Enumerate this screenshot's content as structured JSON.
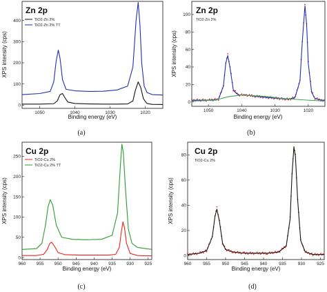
{
  "chart_data": [
    {
      "type": "line",
      "panel_label": "(a)",
      "title": "Zn 2p",
      "xlabel": "Binding energy (eV)",
      "ylabel": "XPS intensity (cps)",
      "xlim": [
        1055,
        1015
      ],
      "ylim": [
        -15,
        490
      ],
      "x_reversed": true,
      "x_ticks": [
        1050,
        1040,
        1030,
        1020
      ],
      "y_ticks": [
        0,
        100,
        200,
        300,
        400
      ],
      "legend": "top-left",
      "series": [
        {
          "name": "TiO2-Zn 2%",
          "color": "#111111",
          "x": [
            1055,
            1050,
            1046,
            1045,
            1044.2,
            1043.5,
            1043,
            1042,
            1040,
            1036,
            1032,
            1028,
            1025,
            1023.5,
            1022.8,
            1022,
            1021.3,
            1020.5,
            1019.5,
            1018,
            1015
          ],
          "y": [
            5,
            5,
            7,
            20,
            50,
            55,
            40,
            15,
            8,
            6,
            5,
            5,
            6,
            20,
            70,
            110,
            85,
            30,
            8,
            4,
            3
          ]
        },
        {
          "name": "TiO2-Zn 2% TT",
          "color": "#1f2fb0",
          "x": [
            1055,
            1050,
            1047,
            1046,
            1045.3,
            1044.7,
            1044.2,
            1043.5,
            1042.5,
            1040,
            1036,
            1032,
            1028,
            1025,
            1023.5,
            1022.6,
            1022,
            1021.5,
            1021,
            1020.3,
            1019.5,
            1018,
            1015
          ],
          "y": [
            50,
            55,
            65,
            110,
            210,
            260,
            220,
            120,
            75,
            68,
            65,
            66,
            72,
            90,
            180,
            400,
            485,
            380,
            200,
            90,
            60,
            50,
            48
          ]
        }
      ]
    },
    {
      "type": "line",
      "panel_label": "(b)",
      "title": "Zn 2p",
      "subtitle": "TiO2-Zn 2%",
      "xlabel": "Binding energy (eV)",
      "ylabel": "XPS intensity (cps)",
      "xlim": [
        1055,
        1015
      ],
      "ylim": [
        -5,
        115
      ],
      "x_reversed": true,
      "x_ticks": [
        1050,
        1040,
        1030,
        1020
      ],
      "y_ticks": [
        0,
        20,
        40,
        60,
        80,
        100
      ],
      "series": [
        {
          "name": "",
          "color": "#e8231c",
          "style": "dots",
          "x": [
            1055,
            1050,
            1047,
            1045.5,
            1044.8,
            1044.2,
            1043.5,
            1042.5,
            1041,
            1039,
            1037,
            1035,
            1032,
            1029,
            1026,
            1024,
            1022.5,
            1021.8,
            1021,
            1020.5,
            1020,
            1019,
            1018,
            1016,
            1015
          ],
          "y": [
            2,
            2,
            3,
            18,
            45,
            54,
            40,
            14,
            8,
            8,
            7,
            6,
            5,
            4,
            3,
            5,
            25,
            70,
            111,
            90,
            45,
            12,
            4,
            2,
            2
          ]
        },
        {
          "name": "",
          "color": "#1f2fb0",
          "x": [
            1055,
            1050,
            1047,
            1045.5,
            1044.8,
            1044.2,
            1043.5,
            1042.5,
            1041,
            1039,
            1037,
            1035,
            1032,
            1029,
            1026,
            1024,
            1022.5,
            1021.8,
            1021,
            1020.5,
            1020,
            1019,
            1018,
            1016,
            1015
          ],
          "y": [
            2,
            2,
            3,
            18,
            44,
            53,
            39,
            13,
            8,
            8,
            7,
            6,
            5,
            4,
            3,
            5,
            24,
            69,
            110,
            89,
            44,
            11,
            4,
            2,
            2
          ]
        },
        {
          "name": "",
          "color": "#3aa655",
          "x": [
            1055,
            1048,
            1044,
            1040,
            1036,
            1032,
            1028,
            1024,
            1020,
            1015
          ],
          "y": [
            1,
            2,
            6,
            8,
            7,
            6,
            4,
            3,
            2,
            1
          ]
        }
      ]
    },
    {
      "type": "line",
      "panel_label": "(c)",
      "title": "Cu 2p",
      "xlabel": "Binding energy (eV)",
      "ylabel": "XPS intensity (cps)",
      "xlim": [
        960,
        924
      ],
      "ylim": [
        -5,
        285
      ],
      "x_reversed": true,
      "x_ticks": [
        960,
        955,
        950,
        945,
        940,
        935,
        930,
        925
      ],
      "y_ticks": [
        0,
        50,
        100,
        150,
        200,
        250
      ],
      "legend": "top-left",
      "series": [
        {
          "name": "TiO2-Cu 2%",
          "color": "#e8231c",
          "x": [
            960,
            956,
            954,
            953,
            952.3,
            951.8,
            951,
            950,
            948,
            944,
            940,
            936,
            934,
            933,
            932.5,
            932,
            931.6,
            931,
            930,
            928,
            924
          ],
          "y": [
            5,
            5,
            8,
            20,
            35,
            38,
            28,
            12,
            7,
            6,
            6,
            6,
            8,
            25,
            60,
            88,
            75,
            35,
            10,
            5,
            4
          ]
        },
        {
          "name": "TiO2-Cu 2% TT",
          "color": "#2e9a2e",
          "x": [
            960,
            956,
            954.5,
            953.5,
            952.8,
            952.2,
            951.5,
            950.5,
            949,
            946,
            942,
            938,
            935,
            933.5,
            932.8,
            932.3,
            931.9,
            931.3,
            930.5,
            929.5,
            928,
            924
          ],
          "y": [
            20,
            22,
            35,
            80,
            125,
            143,
            130,
            80,
            50,
            45,
            44,
            45,
            55,
            110,
            215,
            280,
            260,
            170,
            70,
            35,
            25,
            20
          ]
        }
      ]
    },
    {
      "type": "line",
      "panel_label": "(d)",
      "title": "Cu 2p",
      "subtitle": "TiO2-Cu 2%",
      "xlabel": "Binding energy (eV)",
      "ylabel": "XPS intensity (cps)",
      "xlim": [
        960,
        924
      ],
      "ylim": [
        -3,
        90
      ],
      "x_reversed": true,
      "x_ticks": [
        960,
        955,
        950,
        945,
        940,
        935,
        930,
        925
      ],
      "y_ticks": [
        0,
        20,
        40,
        60,
        80
      ],
      "series": [
        {
          "name": "",
          "color": "#e8231c",
          "style": "dots",
          "x": [
            960,
            957,
            955,
            953.5,
            952.8,
            952.3,
            951.6,
            950.8,
            950,
            948,
            945,
            942,
            939,
            936,
            934,
            933,
            932.5,
            932,
            931.6,
            931,
            930.2,
            929,
            927,
            924
          ],
          "y": [
            1,
            2,
            4,
            15,
            32,
            38,
            28,
            10,
            5,
            3,
            2,
            2,
            2,
            3,
            8,
            30,
            65,
            87,
            80,
            45,
            12,
            3,
            1,
            1
          ]
        },
        {
          "name": "",
          "color": "#111111",
          "x": [
            960,
            957,
            955,
            953.5,
            952.8,
            952.3,
            951.6,
            950.8,
            950,
            948,
            945,
            942,
            939,
            936,
            934,
            933,
            932.5,
            932,
            931.6,
            931,
            930.2,
            929,
            927,
            924
          ],
          "y": [
            1,
            2,
            4,
            15,
            31,
            37,
            27,
            10,
            5,
            3,
            2,
            2,
            2,
            3,
            8,
            29,
            64,
            86,
            79,
            44,
            12,
            3,
            1,
            1
          ]
        }
      ]
    }
  ]
}
